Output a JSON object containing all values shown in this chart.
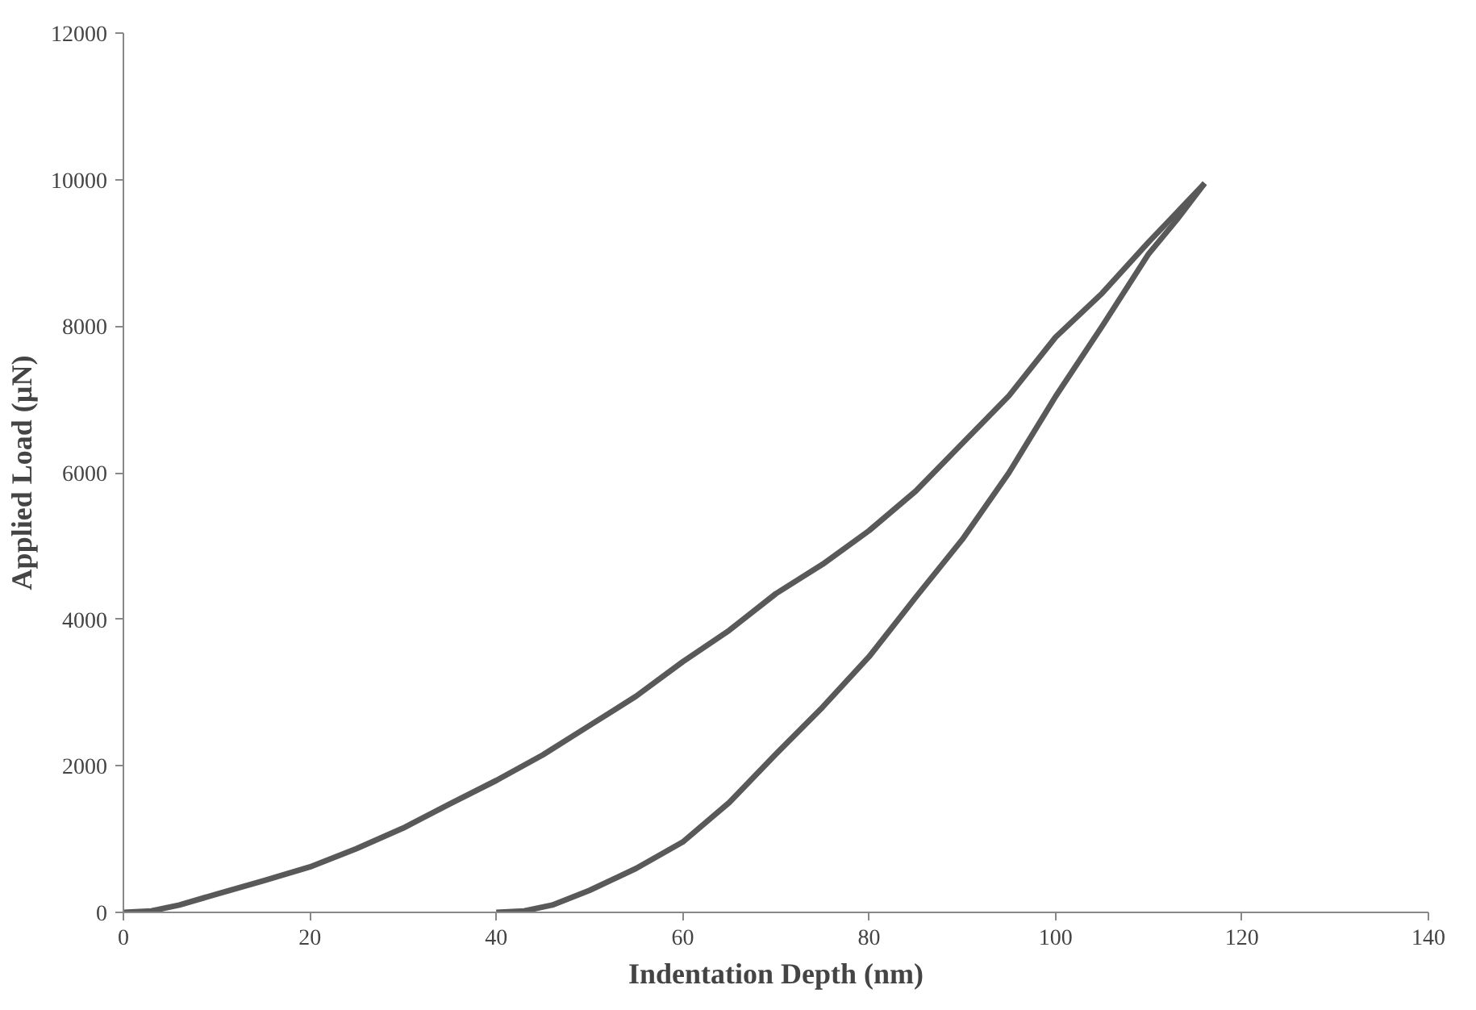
{
  "chart_data": {
    "type": "line",
    "xlabel": "Indentation Depth (nm)",
    "ylabel": "Applied Load (µN)",
    "xlim": [
      0,
      140
    ],
    "xticks": [
      0,
      20,
      40,
      60,
      80,
      100,
      120,
      140
    ],
    "ylim": [
      0,
      12000
    ],
    "yticks": [
      0,
      2000,
      4000,
      6000,
      8000,
      10000,
      12000
    ],
    "grid": false,
    "marker": "none",
    "line_style": "solid",
    "series": [
      {
        "color": "#595959",
        "x": [
          0,
          3,
          6,
          10,
          15,
          20,
          25,
          30,
          35,
          40,
          45,
          50,
          55,
          60,
          65,
          70,
          75,
          80,
          85,
          90,
          95,
          100,
          105,
          110,
          113,
          116
        ],
        "values": [
          0,
          20,
          100,
          250,
          430,
          620,
          870,
          1150,
          1480,
          1800,
          2150,
          2550,
          2950,
          3420,
          3850,
          4350,
          4750,
          5210,
          5750,
          6400,
          7050,
          7850,
          8450,
          9150,
          9550,
          9950
        ]
      },
      {
        "color": "#595959",
        "x": [
          40,
          43,
          46,
          50,
          55,
          60,
          65,
          70,
          75,
          80,
          85,
          90,
          95,
          100,
          105,
          110,
          113,
          116
        ],
        "values": [
          0,
          20,
          100,
          300,
          600,
          960,
          1500,
          2160,
          2800,
          3490,
          4300,
          5090,
          6000,
          7040,
          8000,
          8990,
          9450,
          9950
        ]
      }
    ]
  }
}
